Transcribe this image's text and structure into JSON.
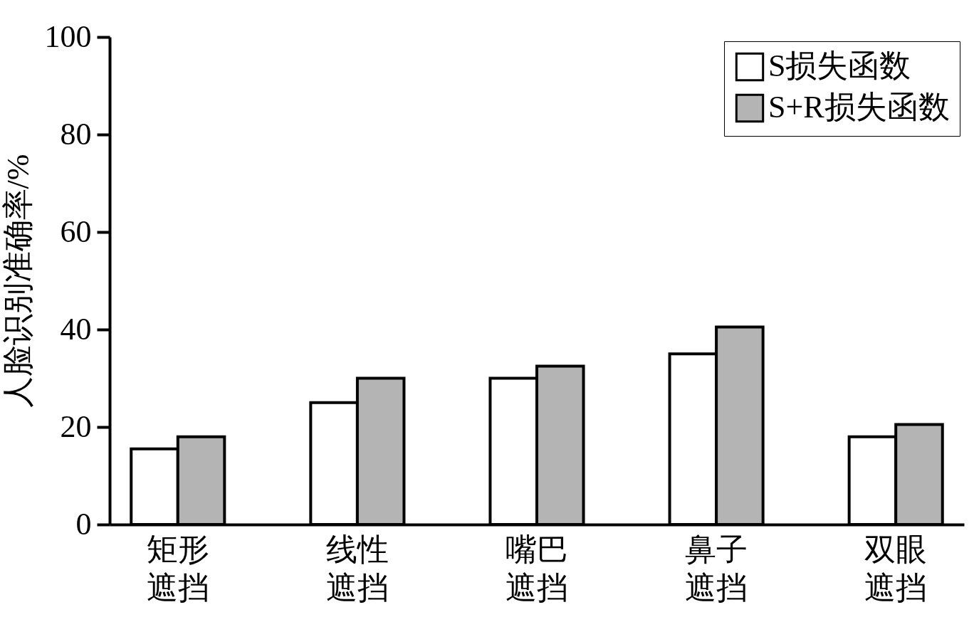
{
  "chart_data": {
    "type": "bar",
    "ylabel": "人脸识别准确率/%",
    "categories": [
      "矩形遮挡",
      "线性遮挡",
      "嘴巴遮挡",
      "鼻子遮挡",
      "双眼遮挡"
    ],
    "series": [
      {
        "name": "S损失函数",
        "color": "#ffffff",
        "values": [
          15.5,
          25,
          30,
          35,
          18
        ]
      },
      {
        "name": "S+R损失函数",
        "color": "#b4b4b4",
        "values": [
          18,
          30,
          32.5,
          40.5,
          20.5
        ]
      }
    ],
    "ylim": [
      0,
      100
    ],
    "yticks": [
      0,
      20,
      40,
      60,
      80,
      100
    ],
    "grid": false,
    "legend": "top right"
  }
}
